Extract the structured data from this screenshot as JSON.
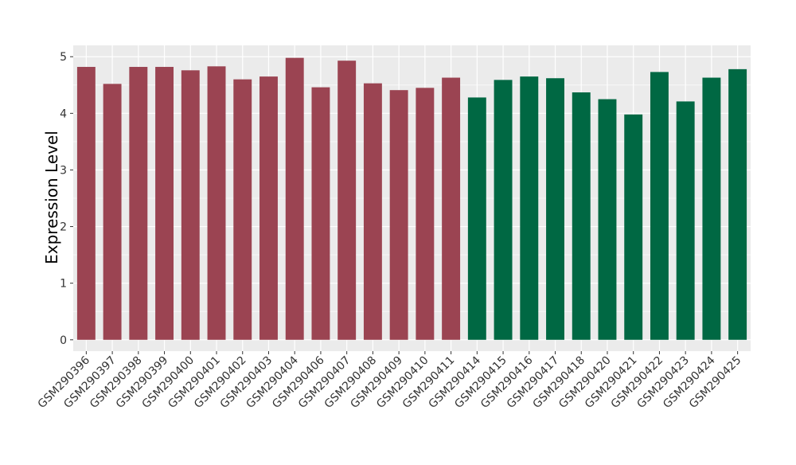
{
  "chart_data": {
    "type": "bar",
    "title": "",
    "xlabel": "",
    "ylabel": "Expression Level",
    "ylim": [
      -0.2,
      5.2
    ],
    "yticks": [
      0,
      1,
      2,
      3,
      4,
      5
    ],
    "grid": true,
    "legend": "none",
    "categories": [
      "GSM290396",
      "GSM290397",
      "GSM290398",
      "GSM290399",
      "GSM290400",
      "GSM290401",
      "GSM290402",
      "GSM290403",
      "GSM290404",
      "GSM290406",
      "GSM290407",
      "GSM290408",
      "GSM290409",
      "GSM290410",
      "GSM290411",
      "GSM290414",
      "GSM290415",
      "GSM290416",
      "GSM290417",
      "GSM290418",
      "GSM290420",
      "GSM290421",
      "GSM290422",
      "GSM290423",
      "GSM290424",
      "GSM290425"
    ],
    "values": [
      4.82,
      4.52,
      4.82,
      4.82,
      4.76,
      4.83,
      4.6,
      4.65,
      4.98,
      4.46,
      4.93,
      4.53,
      4.41,
      4.45,
      4.63,
      4.28,
      4.59,
      4.65,
      4.62,
      4.37,
      4.25,
      3.98,
      4.73,
      4.21,
      4.63,
      4.78
    ],
    "groups": [
      "g1",
      "g1",
      "g1",
      "g1",
      "g1",
      "g1",
      "g1",
      "g1",
      "g1",
      "g1",
      "g1",
      "g1",
      "g1",
      "g1",
      "g1",
      "g2",
      "g2",
      "g2",
      "g2",
      "g2",
      "g2",
      "g2",
      "g2",
      "g2",
      "g2",
      "g2"
    ],
    "colors": {
      "g1": "#9b4452",
      "g2": "#006843"
    },
    "panel_bg": "#ebebeb",
    "grid_color": "#ffffff"
  }
}
